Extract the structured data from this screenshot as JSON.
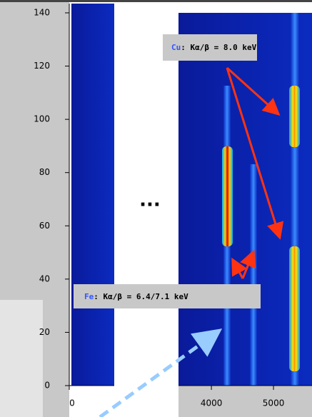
{
  "chart_data": {
    "type": "heatmap",
    "ylim": [
      0,
      140
    ],
    "yticks": [
      0,
      20,
      40,
      60,
      80,
      100,
      120,
      140
    ],
    "xlim": [
      [
        0,
        700
      ],
      [
        3470,
        5620
      ]
    ],
    "xticks": [
      0,
      4000,
      5000
    ],
    "annotations": [
      {
        "element": "Cu",
        "text": ": Kα/β = 8.0 keV",
        "color": "#3355ff"
      },
      {
        "element": "Fe",
        "text": ": Kα/β = 6.4/7.1 keV",
        "color": "#3355ff"
      }
    ],
    "ellipsis": "..."
  }
}
